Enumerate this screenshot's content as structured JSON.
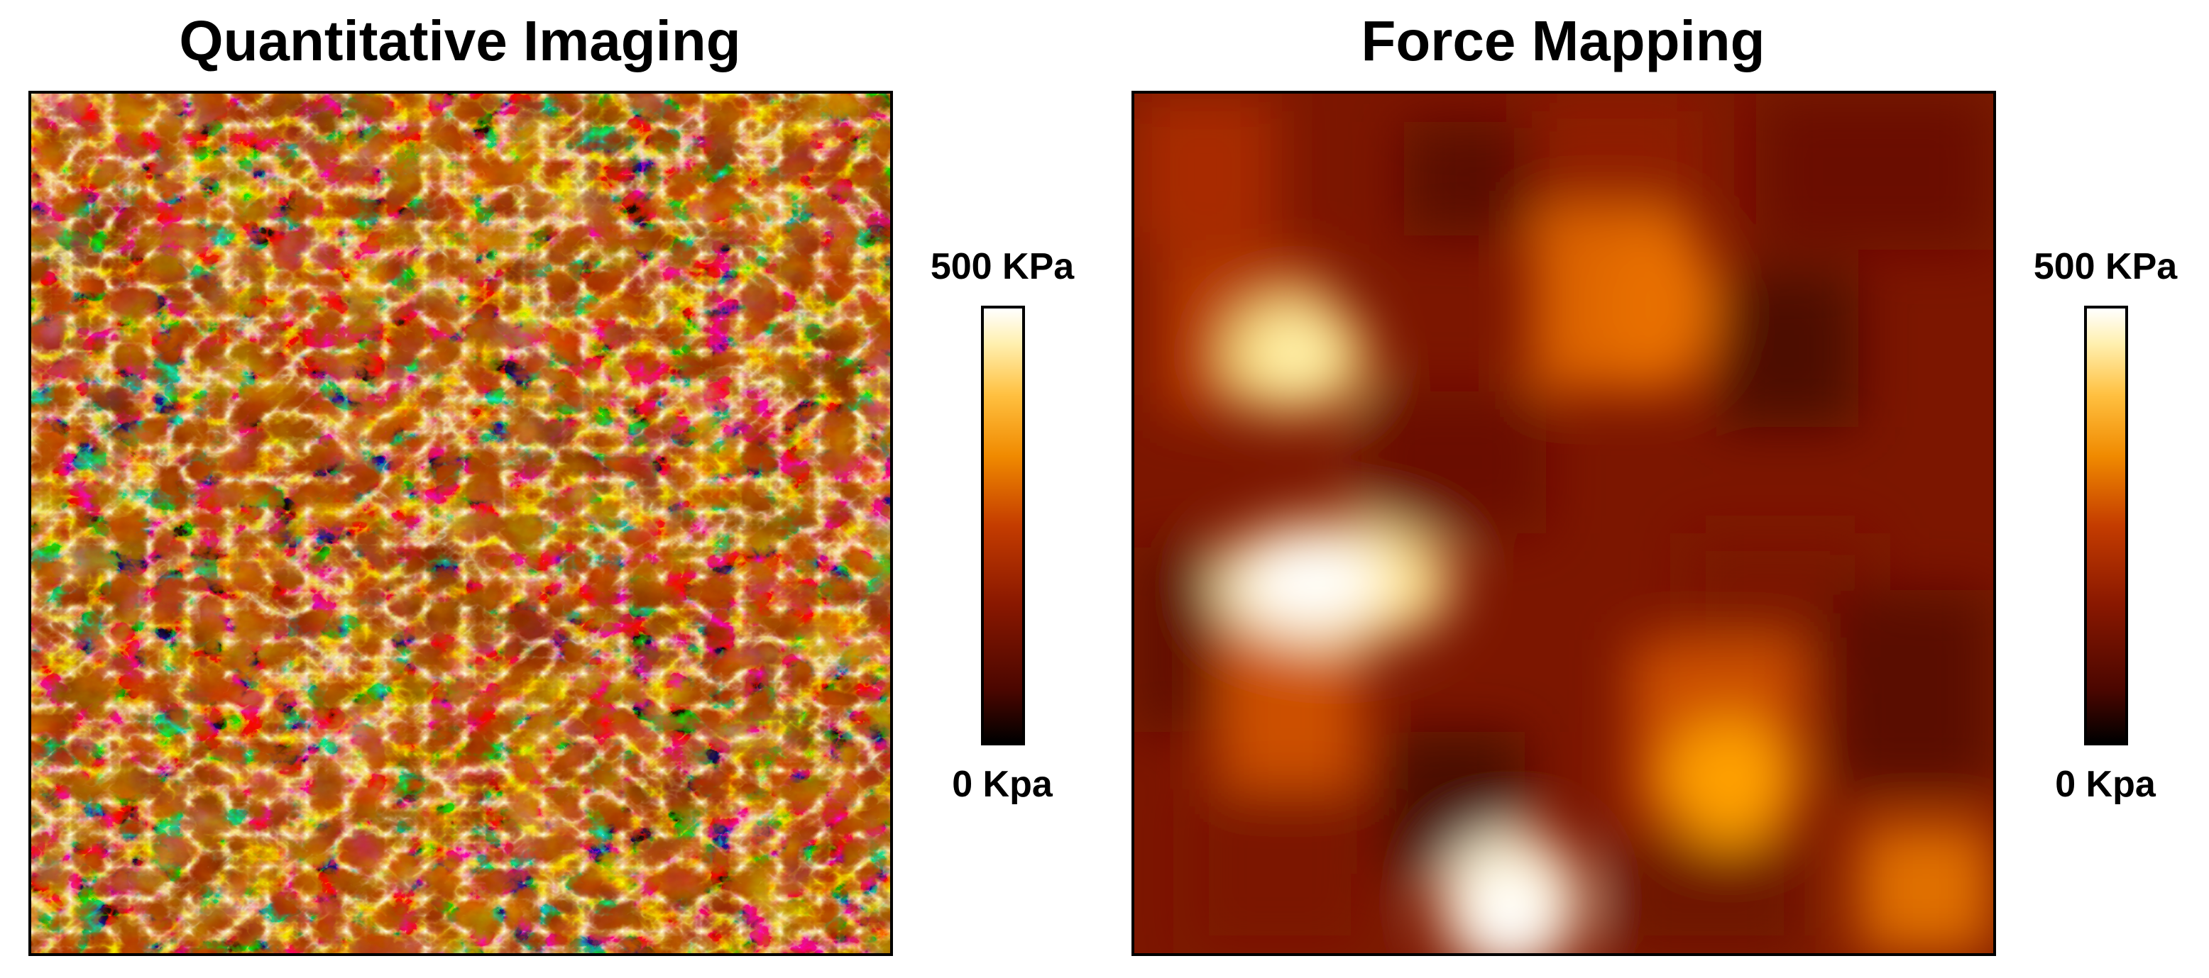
{
  "panels": [
    {
      "title": "Quantitative Imaging",
      "colorbar": {
        "max_label": "500 KPa",
        "min_label": "0 Kpa"
      }
    },
    {
      "title": "Force Mapping",
      "colorbar": {
        "max_label": "500 KPa",
        "min_label": "0 Kpa"
      }
    }
  ],
  "colormap": {
    "name": "afmhot",
    "low": "#000000",
    "mid": "#c43c00",
    "high": "#ffffff"
  }
}
